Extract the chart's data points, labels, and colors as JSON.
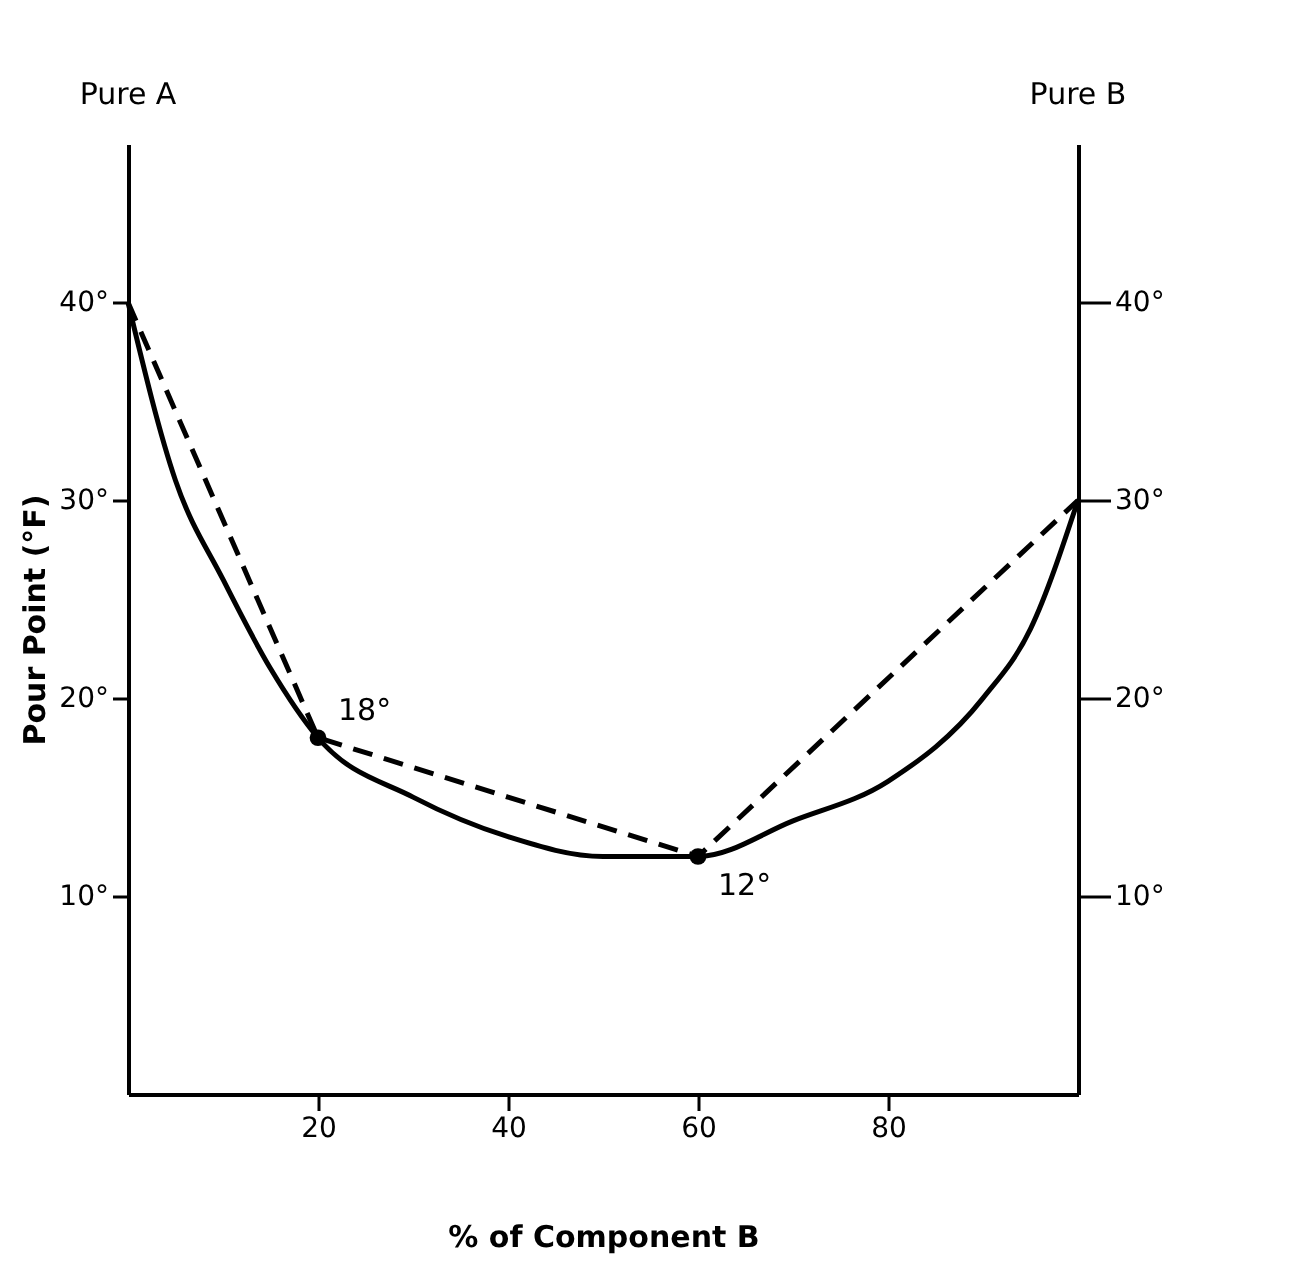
{
  "chart_data": {
    "type": "line",
    "xlabel": "% of Component B",
    "ylabel": "Pour Point (°F)",
    "xlim": [
      0,
      100
    ],
    "xticks": [
      20,
      40,
      60,
      80
    ],
    "ylim": [
      0,
      48
    ],
    "yticks": [
      {
        "value": 10,
        "label": "10°"
      },
      {
        "value": 20,
        "label": "20°"
      },
      {
        "value": 30,
        "label": "30°"
      },
      {
        "value": 40,
        "label": "40°"
      }
    ],
    "y2lim": [
      0,
      48
    ],
    "y2ticks": [
      {
        "value": 10,
        "label": "10°"
      },
      {
        "value": 20,
        "label": "20°"
      },
      {
        "value": 30,
        "label": "30°"
      },
      {
        "value": 40,
        "label": "40°"
      }
    ],
    "grid": false,
    "series": [
      {
        "color": "#000000",
        "line_style": "solid",
        "marker": "none",
        "x": [
          0,
          5,
          10,
          15,
          20,
          30,
          40,
          50,
          55,
          60,
          70,
          80,
          90,
          95,
          100
        ],
        "values": [
          40,
          31,
          26,
          21.5,
          18,
          15,
          13,
          12,
          12,
          12,
          13.8,
          15.8,
          20,
          23.5,
          30
        ]
      },
      {
        "color": "#000000",
        "line_style": "dashed",
        "marker": "none",
        "x": [
          0,
          20,
          60,
          100
        ],
        "values": [
          40,
          18,
          12,
          30
        ]
      },
      {
        "type": "scatter",
        "color": "#000000",
        "marker": "circle",
        "x": [
          20,
          60
        ],
        "values": [
          18,
          12
        ]
      }
    ],
    "annotations": [
      "Pure A",
      "Pure B",
      {
        "text": "18°",
        "x": 20,
        "y": 18
      },
      {
        "text": "12°",
        "x": 60,
        "y": 12
      }
    ]
  }
}
